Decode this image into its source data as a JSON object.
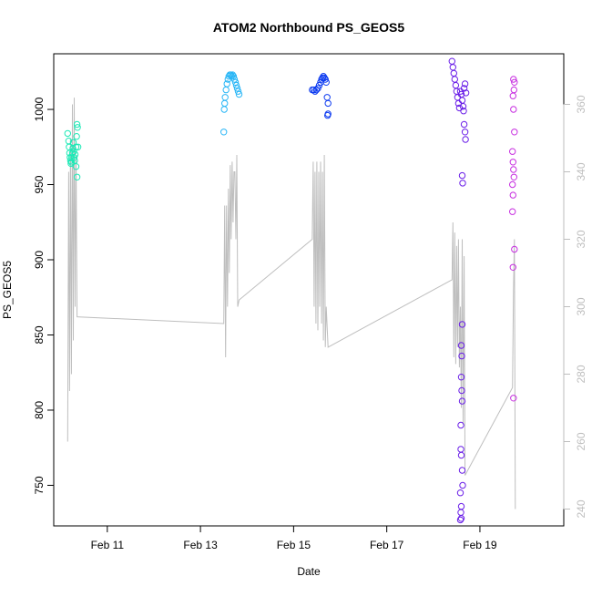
{
  "chart_data": {
    "type": "scatter",
    "title": "ATOM2 Northbound PS_GEOS5",
    "xlabel": "Date",
    "ylabel": "PS_GEOS5",
    "x_unit": "day of February",
    "xlim": [
      9.85,
      20.8
    ],
    "ylim": [
      723,
      1037
    ],
    "ylim_right": [
      235,
      375
    ],
    "x_ticks": [
      {
        "value": 11,
        "label": "Feb 11"
      },
      {
        "value": 13,
        "label": "Feb 13"
      },
      {
        "value": 15,
        "label": "Feb 15"
      },
      {
        "value": 17,
        "label": "Feb 17"
      },
      {
        "value": 19,
        "label": "Feb 19"
      }
    ],
    "y_ticks": [
      750,
      800,
      850,
      900,
      950,
      1000
    ],
    "y_right_ticks": [
      240,
      260,
      280,
      300,
      320,
      340,
      360
    ],
    "grid": false,
    "legend": "none",
    "colors": {
      "right_axis_line": "#bebebe",
      "right_axis_text": "#bebebe",
      "altitude_line": "#bebebe",
      "axis": "#000000"
    },
    "series": [
      {
        "kind": "points",
        "color": "#1de9b6",
        "points": [
          [
            10.15,
            984
          ],
          [
            10.17,
            979
          ],
          [
            10.18,
            975
          ],
          [
            10.19,
            971
          ],
          [
            10.2,
            968
          ],
          [
            10.21,
            966
          ],
          [
            10.22,
            964
          ],
          [
            10.23,
            965
          ],
          [
            10.24,
            968
          ],
          [
            10.25,
            971
          ],
          [
            10.26,
            974
          ],
          [
            10.27,
            978
          ],
          [
            10.28,
            972
          ],
          [
            10.29,
            968
          ],
          [
            10.3,
            966
          ],
          [
            10.31,
            970
          ],
          [
            10.33,
            975
          ],
          [
            10.34,
            982
          ],
          [
            10.35,
            990
          ],
          [
            10.36,
            988
          ],
          [
            10.33,
            962
          ],
          [
            10.35,
            955
          ],
          [
            10.37,
            975
          ]
        ]
      },
      {
        "kind": "points",
        "color": "#29b6f6",
        "points": [
          [
            13.5,
            985
          ],
          [
            13.51,
            1000
          ],
          [
            13.52,
            1004
          ],
          [
            13.53,
            1008
          ],
          [
            13.55,
            1013
          ],
          [
            13.57,
            1017
          ],
          [
            13.59,
            1020
          ],
          [
            13.61,
            1022
          ],
          [
            13.63,
            1023
          ],
          [
            13.65,
            1023
          ],
          [
            13.67,
            1022
          ],
          [
            13.69,
            1023
          ],
          [
            13.71,
            1022
          ],
          [
            13.73,
            1020
          ],
          [
            13.75,
            1018
          ],
          [
            13.77,
            1016
          ],
          [
            13.79,
            1014
          ],
          [
            13.81,
            1012
          ],
          [
            13.83,
            1010
          ]
        ]
      },
      {
        "kind": "points",
        "color": "#0d3bf0",
        "points": [
          [
            15.4,
            1013
          ],
          [
            15.43,
            1013
          ],
          [
            15.46,
            1012
          ],
          [
            15.49,
            1013
          ],
          [
            15.52,
            1014
          ],
          [
            15.55,
            1016
          ],
          [
            15.58,
            1018
          ],
          [
            15.6,
            1020
          ],
          [
            15.62,
            1021
          ],
          [
            15.64,
            1022
          ],
          [
            15.66,
            1021
          ],
          [
            15.68,
            1020
          ],
          [
            15.7,
            1018
          ],
          [
            15.72,
            1008
          ],
          [
            15.74,
            1004
          ],
          [
            15.74,
            997
          ],
          [
            15.73,
            996
          ]
        ]
      },
      {
        "kind": "points",
        "color": "#6a1ee8",
        "points": [
          [
            18.4,
            1032
          ],
          [
            18.42,
            1028
          ],
          [
            18.44,
            1024
          ],
          [
            18.46,
            1020
          ],
          [
            18.48,
            1016
          ],
          [
            18.5,
            1012
          ],
          [
            18.52,
            1008
          ],
          [
            18.54,
            1004
          ],
          [
            18.56,
            1001
          ],
          [
            18.58,
            1012
          ],
          [
            18.6,
            1010
          ],
          [
            18.62,
            1006
          ],
          [
            18.64,
            1002
          ],
          [
            18.66,
            1014
          ],
          [
            18.68,
            1017
          ],
          [
            18.7,
            1011
          ],
          [
            18.65,
            999
          ],
          [
            18.66,
            990
          ],
          [
            18.68,
            985
          ],
          [
            18.69,
            980
          ],
          [
            18.62,
            956
          ],
          [
            18.63,
            951
          ],
          [
            18.62,
            857
          ],
          [
            18.6,
            843
          ],
          [
            18.61,
            836
          ],
          [
            18.6,
            822
          ],
          [
            18.61,
            813
          ],
          [
            18.62,
            806
          ],
          [
            18.59,
            790
          ],
          [
            18.59,
            774
          ],
          [
            18.6,
            770
          ],
          [
            18.62,
            760
          ],
          [
            18.63,
            750
          ],
          [
            18.58,
            745
          ],
          [
            18.6,
            736
          ],
          [
            18.59,
            732
          ],
          [
            18.58,
            727
          ],
          [
            18.6,
            728
          ]
        ]
      },
      {
        "kind": "points",
        "color": "#c72ee0",
        "points": [
          [
            19.72,
            1020
          ],
          [
            19.74,
            1018
          ],
          [
            19.73,
            1013
          ],
          [
            19.71,
            1009
          ],
          [
            19.72,
            1000
          ],
          [
            19.74,
            985
          ],
          [
            19.7,
            972
          ],
          [
            19.71,
            965
          ],
          [
            19.72,
            960
          ],
          [
            19.73,
            955
          ],
          [
            19.7,
            950
          ],
          [
            19.71,
            943
          ],
          [
            19.7,
            932
          ],
          [
            19.74,
            907
          ],
          [
            19.71,
            895
          ],
          [
            19.72,
            808
          ]
        ]
      },
      {
        "kind": "line",
        "name": "",
        "axis": "right",
        "color": "#bebebe",
        "points": [
          [
            10.15,
            260
          ],
          [
            10.17,
            340
          ],
          [
            10.19,
            275
          ],
          [
            10.21,
            350
          ],
          [
            10.23,
            280
          ],
          [
            10.25,
            360
          ],
          [
            10.27,
            290
          ],
          [
            10.29,
            362
          ],
          [
            10.31,
            300
          ],
          [
            10.33,
            345
          ],
          [
            10.35,
            297
          ],
          [
            13.5,
            295
          ],
          [
            13.52,
            330
          ],
          [
            13.54,
            285
          ],
          [
            13.56,
            330
          ],
          [
            13.58,
            300
          ],
          [
            13.6,
            335
          ],
          [
            13.62,
            310
          ],
          [
            13.64,
            342
          ],
          [
            13.66,
            320
          ],
          [
            13.68,
            343
          ],
          [
            13.7,
            325
          ],
          [
            13.72,
            340
          ],
          [
            13.74,
            340
          ],
          [
            13.76,
            320
          ],
          [
            13.78,
            345
          ],
          [
            13.8,
            300
          ],
          [
            13.83,
            302
          ],
          [
            15.4,
            320
          ],
          [
            15.42,
            343
          ],
          [
            15.44,
            300
          ],
          [
            15.46,
            340
          ],
          [
            15.48,
            295
          ],
          [
            15.5,
            343
          ],
          [
            15.52,
            293
          ],
          [
            15.54,
            340
          ],
          [
            15.56,
            300
          ],
          [
            15.58,
            343
          ],
          [
            15.6,
            295
          ],
          [
            15.62,
            340
          ],
          [
            15.64,
            290
          ],
          [
            15.66,
            345
          ],
          [
            15.68,
            288
          ],
          [
            15.7,
            300
          ],
          [
            15.74,
            288
          ],
          [
            18.4,
            308
          ],
          [
            18.42,
            325
          ],
          [
            18.44,
            285
          ],
          [
            18.46,
            322
          ],
          [
            18.48,
            283
          ],
          [
            18.5,
            318
          ],
          [
            18.52,
            288
          ],
          [
            18.54,
            320
          ],
          [
            18.56,
            282
          ],
          [
            18.58,
            300
          ],
          [
            18.6,
            270
          ],
          [
            18.62,
            320
          ],
          [
            18.64,
            265
          ],
          [
            18.66,
            315
          ],
          [
            18.68,
            250
          ],
          [
            19.7,
            276
          ],
          [
            19.72,
            305
          ],
          [
            19.74,
            320
          ],
          [
            19.76,
            240
          ]
        ]
      }
    ]
  }
}
